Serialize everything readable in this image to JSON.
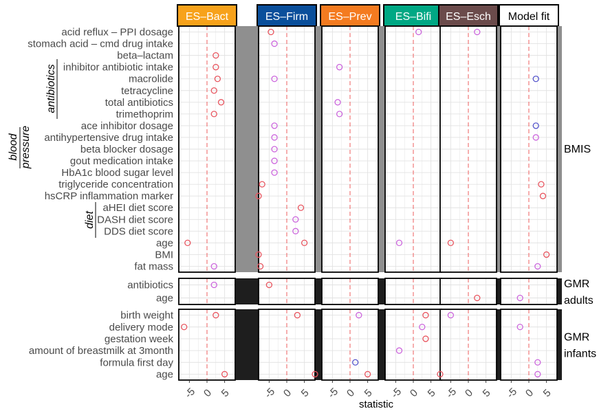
{
  "chart_data": {
    "type": "scatter",
    "xlabel": "statistic",
    "x_ticks": [
      "-5",
      "0",
      "5"
    ],
    "xlim": [
      -8,
      8
    ],
    "reference_line_x": 0,
    "facet_columns": [
      {
        "label": "ES–Bact",
        "color": "#f7a21b"
      },
      {
        "label": "ES–Firm",
        "color": "#0a4f9b"
      },
      {
        "label": "ES–Prev",
        "color": "#f47b20"
      },
      {
        "label": "ES–Bifi",
        "color": "#00a884"
      },
      {
        "label": "ES–Esch",
        "color": "#6b4b4b"
      },
      {
        "label": "Model fit",
        "color": "#ffffff"
      }
    ],
    "point_colors": {
      "red": "#e8555f",
      "violet": "#cc66dd",
      "blue": "#5555cc"
    },
    "group_labels": {
      "antibiotics": "antibiotics",
      "blood_pressure_1": "blood",
      "blood_pressure_2": "pressure",
      "diet": "diet"
    },
    "panels": [
      {
        "labels": [
          "BMIS"
        ],
        "strip_color": "#8f8f8f",
        "rows": [
          "acid reflux – PPI dosage",
          "stomach acid – cmd drug intake",
          "beta–lactam",
          "inhibitor antibiotic intake",
          "macrolide",
          "tetracycline",
          "total antibiotics",
          "trimethoprim",
          "ace inhibitor dosage",
          "antihypertensive drug intake",
          "beta blocker dosage",
          "gout medication intake",
          "HbA1c blood sugar level",
          "triglyceride concentration",
          "hsCRP inflammation marker",
          "aHEI diet score",
          "DASH diet score",
          "DDS diet score",
          "age",
          "BMI",
          "fat mass"
        ],
        "points": [
          {
            "row": 0,
            "col": 1,
            "x": -4.5,
            "c": "red"
          },
          {
            "row": 0,
            "col": 3,
            "x": 1.5,
            "c": "violet"
          },
          {
            "row": 0,
            "col": 4,
            "x": 2.5,
            "c": "violet"
          },
          {
            "row": 1,
            "col": 1,
            "x": -3.5,
            "c": "violet"
          },
          {
            "row": 2,
            "col": 0,
            "x": 2.5,
            "c": "red"
          },
          {
            "row": 3,
            "col": 0,
            "x": 2.5,
            "c": "red"
          },
          {
            "row": 3,
            "col": 2,
            "x": -3,
            "c": "violet"
          },
          {
            "row": 4,
            "col": 0,
            "x": 3,
            "c": "red"
          },
          {
            "row": 4,
            "col": 1,
            "x": -3.5,
            "c": "violet"
          },
          {
            "row": 4,
            "col": 5,
            "x": 2,
            "c": "blue"
          },
          {
            "row": 5,
            "col": 0,
            "x": 2,
            "c": "red"
          },
          {
            "row": 6,
            "col": 0,
            "x": 4,
            "c": "red"
          },
          {
            "row": 6,
            "col": 2,
            "x": -3.5,
            "c": "violet"
          },
          {
            "row": 7,
            "col": 0,
            "x": 2,
            "c": "red"
          },
          {
            "row": 7,
            "col": 2,
            "x": -3,
            "c": "violet"
          },
          {
            "row": 8,
            "col": 1,
            "x": -3.5,
            "c": "violet"
          },
          {
            "row": 8,
            "col": 5,
            "x": 2,
            "c": "blue"
          },
          {
            "row": 9,
            "col": 1,
            "x": -3.5,
            "c": "violet"
          },
          {
            "row": 9,
            "col": 5,
            "x": 2,
            "c": "violet"
          },
          {
            "row": 10,
            "col": 1,
            "x": -3.5,
            "c": "violet"
          },
          {
            "row": 11,
            "col": 1,
            "x": -3.5,
            "c": "violet"
          },
          {
            "row": 12,
            "col": 1,
            "x": -3.5,
            "c": "violet"
          },
          {
            "row": 13,
            "col": 1,
            "x": -7,
            "c": "red"
          },
          {
            "row": 13,
            "col": 5,
            "x": 3.5,
            "c": "red"
          },
          {
            "row": 14,
            "col": 1,
            "x": -8,
            "c": "red"
          },
          {
            "row": 14,
            "col": 5,
            "x": 4,
            "c": "red"
          },
          {
            "row": 15,
            "col": 1,
            "x": 4,
            "c": "red"
          },
          {
            "row": 16,
            "col": 1,
            "x": 2.5,
            "c": "violet"
          },
          {
            "row": 17,
            "col": 1,
            "x": 2.5,
            "c": "violet"
          },
          {
            "row": 18,
            "col": 0,
            "x": -5.5,
            "c": "red"
          },
          {
            "row": 18,
            "col": 1,
            "x": 5,
            "c": "red"
          },
          {
            "row": 18,
            "col": 3,
            "x": -4,
            "c": "violet"
          },
          {
            "row": 18,
            "col": 4,
            "x": -5,
            "c": "red"
          },
          {
            "row": 19,
            "col": 1,
            "x": -12,
            "c": "red"
          },
          {
            "row": 19,
            "col": 5,
            "x": 5,
            "c": "red"
          },
          {
            "row": 20,
            "col": 0,
            "x": 2,
            "c": "violet"
          },
          {
            "row": 20,
            "col": 1,
            "x": -7.5,
            "c": "red"
          },
          {
            "row": 20,
            "col": 5,
            "x": 2.5,
            "c": "violet"
          }
        ]
      },
      {
        "labels": [
          "GMR",
          "adults"
        ],
        "strip_color": "#1e1e1e",
        "rows": [
          "antibiotics",
          "age"
        ],
        "points": [
          {
            "row": 0,
            "col": 0,
            "x": 2,
            "c": "violet"
          },
          {
            "row": 0,
            "col": 1,
            "x": -5,
            "c": "red"
          },
          {
            "row": 1,
            "col": 4,
            "x": 2.5,
            "c": "red"
          },
          {
            "row": 1,
            "col": 5,
            "x": -2.5,
            "c": "violet"
          }
        ]
      },
      {
        "labels": [
          "GMR",
          "infants"
        ],
        "strip_color": "#1e1e1e",
        "rows": [
          "birth weight",
          "delivery mode",
          "gestation week",
          "amount of breastmilk at 3month",
          "formula first day",
          "age"
        ],
        "points": [
          {
            "row": 0,
            "col": 0,
            "x": 2.5,
            "c": "red"
          },
          {
            "row": 0,
            "col": 1,
            "x": 3,
            "c": "red"
          },
          {
            "row": 0,
            "col": 2,
            "x": 2.5,
            "c": "violet"
          },
          {
            "row": 0,
            "col": 3,
            "x": 3.5,
            "c": "red"
          },
          {
            "row": 0,
            "col": 4,
            "x": -5,
            "c": "violet"
          },
          {
            "row": 1,
            "col": 0,
            "x": -6.5,
            "c": "red"
          },
          {
            "row": 1,
            "col": 3,
            "x": 2.5,
            "c": "violet"
          },
          {
            "row": 1,
            "col": 5,
            "x": -2.5,
            "c": "violet"
          },
          {
            "row": 2,
            "col": 3,
            "x": 3.5,
            "c": "red"
          },
          {
            "row": 3,
            "col": 3,
            "x": -4,
            "c": "violet"
          },
          {
            "row": 4,
            "col": 2,
            "x": 1.5,
            "c": "blue"
          },
          {
            "row": 4,
            "col": 5,
            "x": 2.5,
            "c": "violet"
          },
          {
            "row": 5,
            "col": 0,
            "x": 5,
            "c": "red"
          },
          {
            "row": 5,
            "col": 1,
            "x": 8,
            "c": "red"
          },
          {
            "row": 5,
            "col": 2,
            "x": 5,
            "c": "red"
          },
          {
            "row": 5,
            "col": 4,
            "x": -8,
            "c": "red"
          },
          {
            "row": 5,
            "col": 5,
            "x": 2.5,
            "c": "violet"
          }
        ]
      }
    ]
  }
}
